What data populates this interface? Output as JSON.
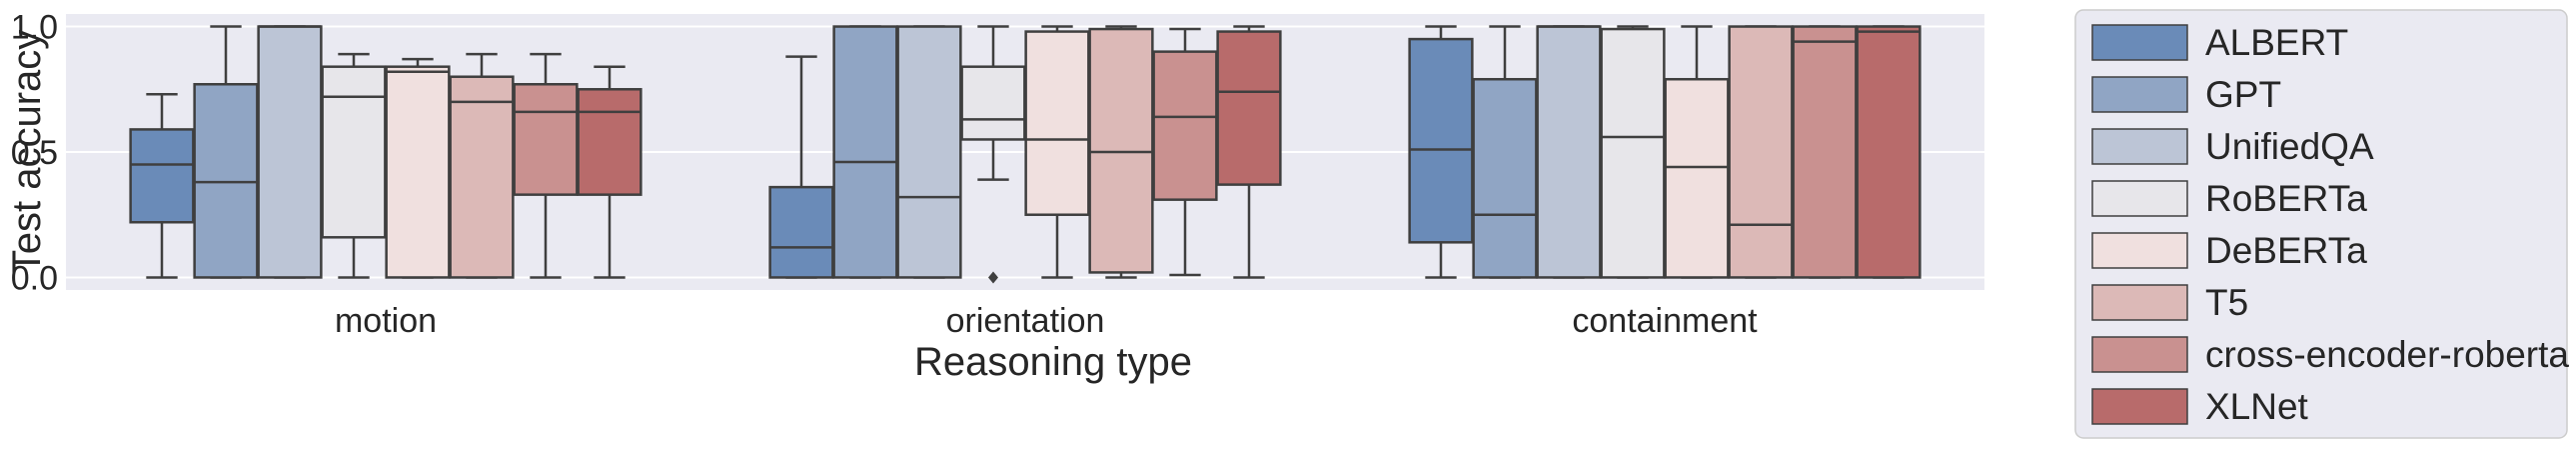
{
  "chart_data": {
    "type": "box",
    "xlabel": "Reasoning type",
    "ylabel": "Test accuracy",
    "ylim": [
      -0.05,
      1.05
    ],
    "yticks": [
      "0.0",
      "0.5",
      "1.0"
    ],
    "ytick_values": [
      0.0,
      0.5,
      1.0
    ],
    "grid": true,
    "legend_position": "outside-right",
    "categories": [
      "motion",
      "orientation",
      "containment"
    ],
    "series": [
      {
        "name": "ALBERT",
        "color": "#6a8bb8",
        "boxes": [
          {
            "whislo": 0.0,
            "q1": 0.22,
            "med": 0.45,
            "q3": 0.59,
            "whishi": 0.73
          },
          {
            "whislo": 0.0,
            "q1": 0.0,
            "med": 0.12,
            "q3": 0.36,
            "whishi": 0.88
          },
          {
            "whislo": 0.0,
            "q1": 0.14,
            "med": 0.51,
            "q3": 0.95,
            "whishi": 1.0
          }
        ]
      },
      {
        "name": "GPT",
        "color": "#90a5c4",
        "boxes": [
          {
            "whislo": 0.0,
            "q1": 0.0,
            "med": 0.38,
            "q3": 0.77,
            "whishi": 1.0
          },
          {
            "whislo": 0.0,
            "q1": 0.0,
            "med": 0.46,
            "q3": 1.0,
            "whishi": 1.0
          },
          {
            "whislo": 0.0,
            "q1": 0.0,
            "med": 0.25,
            "q3": 0.79,
            "whishi": 1.0
          }
        ]
      },
      {
        "name": "UnifiedQA",
        "color": "#bcc5d6",
        "boxes": [
          {
            "whislo": 0.0,
            "q1": 0.0,
            "med": 1.0,
            "q3": 1.0,
            "whishi": 1.0
          },
          {
            "whislo": 0.0,
            "q1": 0.0,
            "med": 0.32,
            "q3": 1.0,
            "whishi": 1.0
          },
          {
            "whislo": 0.0,
            "q1": 0.0,
            "med": 1.0,
            "q3": 1.0,
            "whishi": 1.0
          }
        ]
      },
      {
        "name": "RoBERTa",
        "color": "#e7e6ea",
        "boxes": [
          {
            "whislo": 0.0,
            "q1": 0.16,
            "med": 0.72,
            "q3": 0.84,
            "whishi": 0.89
          },
          {
            "whislo": 0.39,
            "q1": 0.55,
            "med": 0.63,
            "q3": 0.84,
            "whishi": 1.0,
            "fliers": [
              0.0
            ]
          },
          {
            "whislo": 0.0,
            "q1": 0.0,
            "med": 0.56,
            "q3": 0.99,
            "whishi": 1.0
          }
        ]
      },
      {
        "name": "DeBERTa",
        "color": "#f0e0df",
        "boxes": [
          {
            "whislo": 0.0,
            "q1": 0.0,
            "med": 0.82,
            "q3": 0.84,
            "whishi": 0.87
          },
          {
            "whislo": 0.0,
            "q1": 0.25,
            "med": 0.55,
            "q3": 0.98,
            "whishi": 1.0
          },
          {
            "whislo": 0.0,
            "q1": 0.0,
            "med": 0.44,
            "q3": 0.79,
            "whishi": 1.0
          }
        ]
      },
      {
        "name": "T5",
        "color": "#dcb9b7",
        "boxes": [
          {
            "whislo": 0.0,
            "q1": 0.0,
            "med": 0.7,
            "q3": 0.8,
            "whishi": 0.89
          },
          {
            "whislo": 0.0,
            "q1": 0.02,
            "med": 0.5,
            "q3": 0.99,
            "whishi": 1.0
          },
          {
            "whislo": 0.0,
            "q1": 0.0,
            "med": 0.21,
            "q3": 1.0,
            "whishi": 1.0
          }
        ]
      },
      {
        "name": "cross-encoder-roberta",
        "color": "#c99190",
        "boxes": [
          {
            "whislo": 0.0,
            "q1": 0.33,
            "med": 0.66,
            "q3": 0.77,
            "whishi": 0.89
          },
          {
            "whislo": 0.01,
            "q1": 0.31,
            "med": 0.64,
            "q3": 0.9,
            "whishi": 0.99
          },
          {
            "whislo": 0.0,
            "q1": 0.0,
            "med": 0.94,
            "q3": 1.0,
            "whishi": 1.0
          }
        ]
      },
      {
        "name": "XLNet",
        "color": "#b86b6b",
        "boxes": [
          {
            "whislo": 0.0,
            "q1": 0.33,
            "med": 0.66,
            "q3": 0.75,
            "whishi": 0.84
          },
          {
            "whislo": 0.0,
            "q1": 0.37,
            "med": 0.74,
            "q3": 0.98,
            "whishi": 1.0
          },
          {
            "whislo": 0.0,
            "q1": 0.0,
            "med": 0.98,
            "q3": 1.0,
            "whishi": 1.0
          }
        ]
      }
    ]
  }
}
